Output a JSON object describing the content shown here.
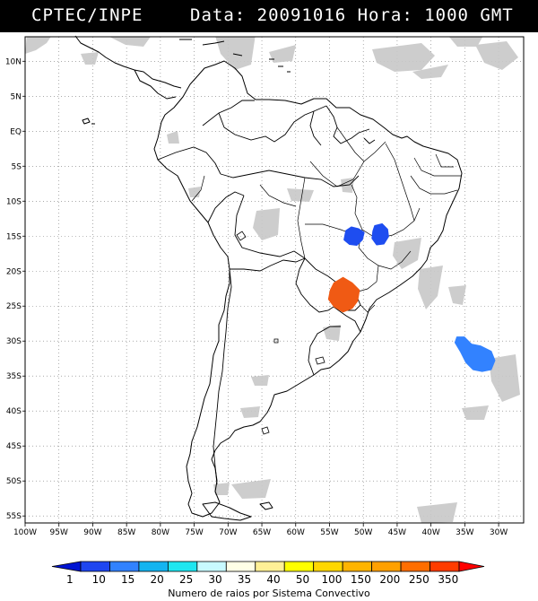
{
  "header": {
    "left": "CPTEC/INPE",
    "right": "Data: 20091016 Hora: 1000 GMT"
  },
  "axes": {
    "lat_labels": [
      "10N",
      "5N",
      "EQ",
      "5S",
      "10S",
      "15S",
      "20S",
      "25S",
      "30S",
      "35S",
      "40S",
      "45S",
      "50S",
      "55S"
    ],
    "lat_values": [
      10,
      5,
      0,
      -5,
      -10,
      -15,
      -20,
      -25,
      -30,
      -35,
      -40,
      -45,
      -50,
      -55
    ],
    "lon_labels": [
      "100W",
      "95W",
      "90W",
      "85W",
      "80W",
      "75W",
      "70W",
      "65W",
      "60W",
      "55W",
      "50W",
      "45W",
      "40W",
      "35W",
      "30W"
    ],
    "lon_values": [
      -100,
      -95,
      -90,
      -85,
      -80,
      -75,
      -70,
      -65,
      -60,
      -55,
      -50,
      -45,
      -40,
      -35,
      -30
    ],
    "lat_range": [
      -56,
      13.5
    ],
    "lon_range": [
      -100,
      -26.3
    ],
    "grid": "dotted"
  },
  "lightning_systems": [
    {
      "name": "central-brazil-west",
      "lon": -51.5,
      "lat": -15.0,
      "category": "1-10",
      "color": "#1e4df0"
    },
    {
      "name": "central-brazil-east",
      "lon": -47.5,
      "lat": -14.8,
      "category": "1-10",
      "color": "#1e4df0"
    },
    {
      "name": "paraguay-parana",
      "lon": -53.0,
      "lat": -23.5,
      "category": "200-250",
      "color": "#f05a14"
    },
    {
      "name": "south-atlantic",
      "lon": -33.5,
      "lat": -32.0,
      "category": "10-15",
      "color": "#3282ff"
    }
  ],
  "colorbar": {
    "labels": [
      "1",
      "10",
      "15",
      "20",
      "25",
      "30",
      "35",
      "40",
      "50",
      "100",
      "150",
      "200",
      "250",
      "350"
    ],
    "colors": [
      "#0014d2",
      "#1e46f0",
      "#3282ff",
      "#14b4f0",
      "#1ee6f0",
      "#c8faff",
      "#ffffe6",
      "#fff096",
      "#ffff00",
      "#ffd700",
      "#ffb400",
      "#ffa000",
      "#ff6e00",
      "#ff3c00",
      "#ff0000"
    ],
    "title": "Numero de raios por Sistema Convectivo"
  }
}
